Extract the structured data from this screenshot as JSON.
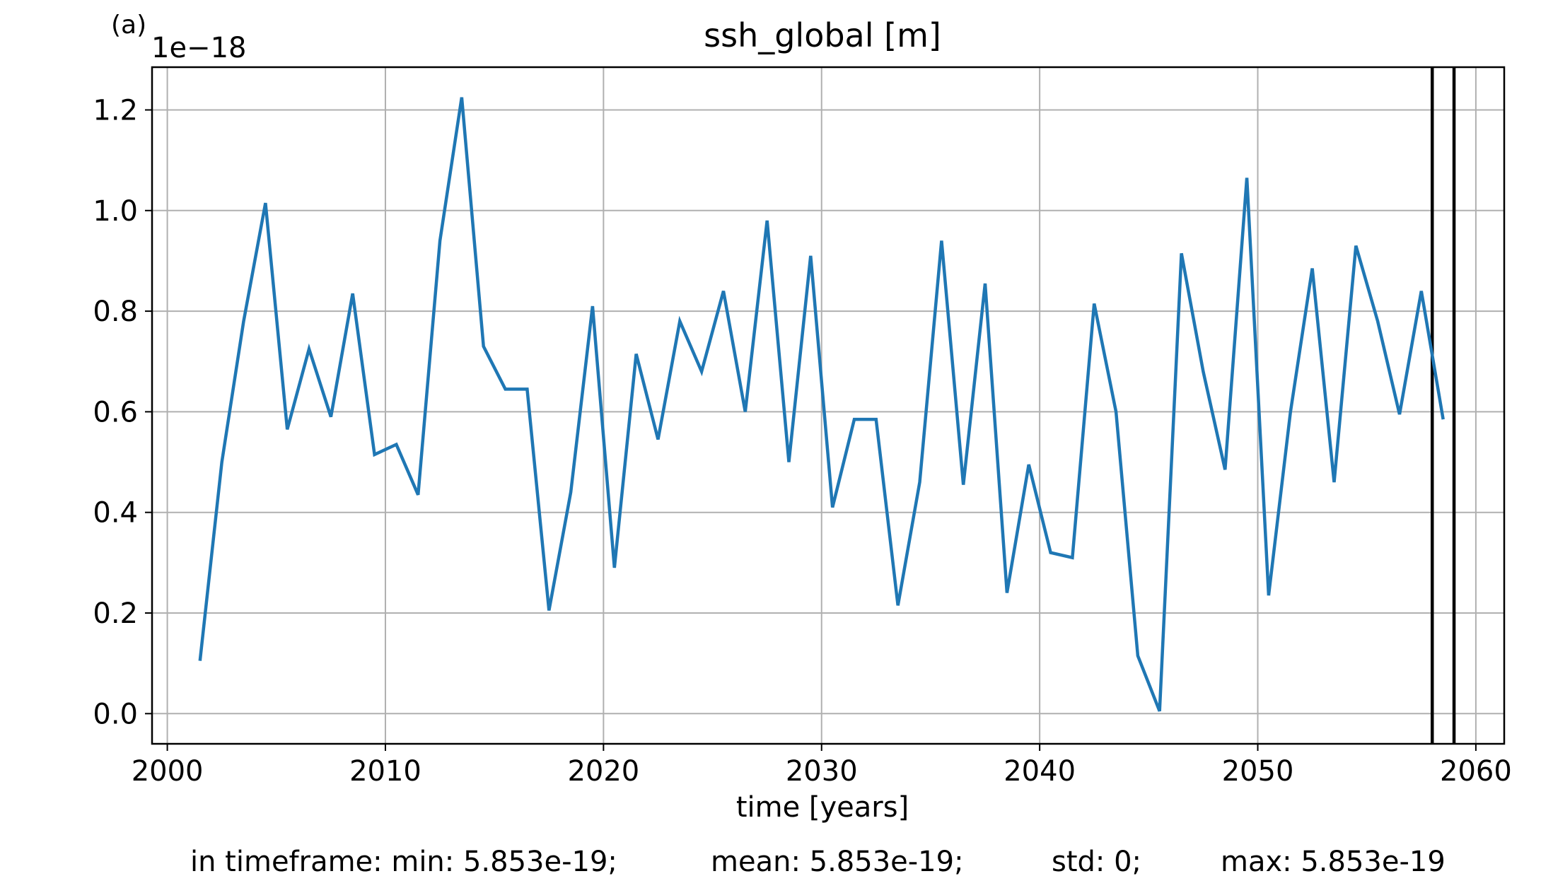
{
  "panel_label": "(a)",
  "stats": {
    "min": "in timeframe: min: 5.853e-19;",
    "mean": "mean: 5.853e-19;",
    "std": "std: 0;",
    "max": "max: 5.853e-19"
  },
  "colors": {
    "line": "#1f77b4",
    "grid": "#b0b0b0",
    "marker_line": "#000000"
  },
  "chart_data": {
    "type": "line",
    "title": "ssh_global [m]",
    "xlabel": "time [years]",
    "ylabel": "",
    "y_offset_label": "1e−18",
    "grid": true,
    "xlim": [
      1999.3,
      2061.3
    ],
    "ylim": [
      -0.06,
      1.285
    ],
    "xticks": [
      2000,
      2010,
      2020,
      2030,
      2040,
      2050,
      2060
    ],
    "xtick_labels": [
      "2000",
      "2010",
      "2020",
      "2030",
      "2040",
      "2050",
      "2060"
    ],
    "yticks": [
      0.0,
      0.2,
      0.4,
      0.6,
      0.8,
      1.0,
      1.2
    ],
    "ytick_labels": [
      "0.0",
      "0.2",
      "0.4",
      "0.6",
      "0.8",
      "1.0",
      "1.2"
    ],
    "vertical_lines": [
      2058.0,
      2059.0
    ],
    "series": [
      {
        "x": [
          2001.5,
          2002.5,
          2003.5,
          2004.5,
          2005.5,
          2006.5,
          2007.5,
          2008.5,
          2009.5,
          2010.5,
          2011.5,
          2012.5,
          2013.5,
          2014.5,
          2015.5,
          2016.5,
          2017.5,
          2018.5,
          2019.5,
          2020.5,
          2021.5,
          2022.5,
          2023.5,
          2024.5,
          2025.5,
          2026.5,
          2027.5,
          2028.5,
          2029.5,
          2030.5,
          2031.5,
          2032.5,
          2033.5,
          2034.5,
          2035.5,
          2036.5,
          2037.5,
          2038.5,
          2039.5,
          2040.5,
          2041.5,
          2042.5,
          2043.5,
          2044.5,
          2045.5,
          2046.5,
          2047.5,
          2048.5,
          2049.5,
          2050.5,
          2051.5,
          2052.5,
          2053.5,
          2054.5,
          2055.5,
          2056.5,
          2057.5,
          2058.5
        ],
        "values": [
          0.105,
          0.5,
          0.78,
          1.015,
          0.565,
          0.725,
          0.59,
          0.835,
          0.515,
          0.535,
          0.435,
          0.94,
          1.225,
          0.73,
          0.645,
          0.645,
          0.205,
          0.44,
          0.81,
          0.29,
          0.715,
          0.545,
          0.78,
          0.68,
          0.84,
          0.6,
          0.98,
          0.5,
          0.91,
          0.41,
          0.585,
          0.585,
          0.215,
          0.46,
          0.94,
          0.455,
          0.855,
          0.24,
          0.495,
          0.32,
          0.31,
          0.815,
          0.6,
          0.115,
          0.005,
          0.915,
          0.68,
          0.485,
          1.065,
          0.235,
          0.6,
          0.885,
          0.46,
          0.93,
          0.78,
          0.595,
          0.84,
          0.585
        ]
      }
    ]
  }
}
